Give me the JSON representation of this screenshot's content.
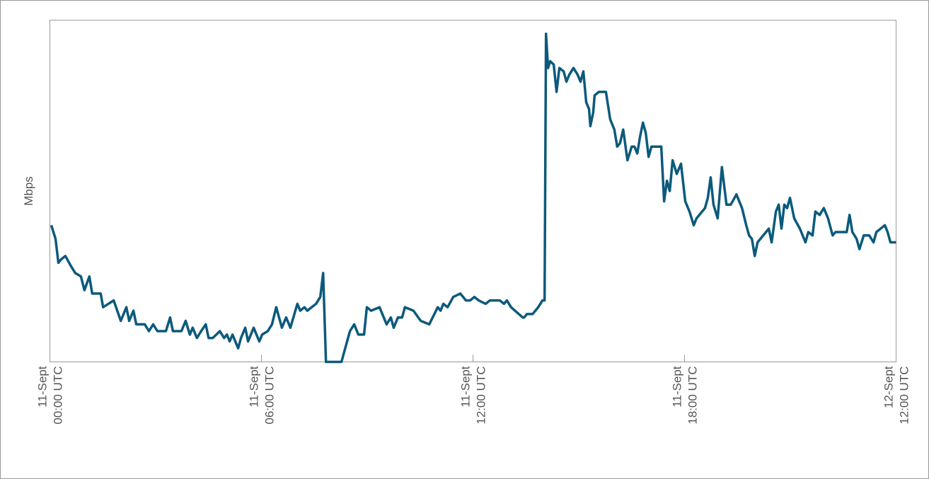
{
  "chart_data": {
    "type": "line",
    "y_label": "Mbps",
    "xlim": [
      0,
      24
    ],
    "ylim": [
      0,
      100
    ],
    "xticks": [
      {
        "value": 0,
        "label": [
          "11-Sept",
          "00:00 UTC"
        ]
      },
      {
        "value": 6,
        "label": [
          "11-Sept",
          "06:00 UTC"
        ]
      },
      {
        "value": 12,
        "label": [
          "11-Sept",
          "12:00 UTC"
        ]
      },
      {
        "value": 18,
        "label": [
          "11-Sept",
          "18:00 UTC"
        ]
      },
      {
        "value": 24,
        "label": [
          "12-Sept",
          "12:00 UTC"
        ]
      }
    ],
    "grid": false,
    "series": [
      {
        "color": "#0b5a7c",
        "x": [
          0.04,
          0.16,
          0.24,
          0.32,
          0.44,
          0.6,
          0.72,
          0.88,
          0.98,
          1.12,
          1.2,
          1.36,
          1.44,
          1.51,
          1.81,
          2.01,
          2.17,
          2.25,
          2.37,
          2.45,
          2.69,
          2.81,
          2.93,
          3.05,
          3.29,
          3.41,
          3.49,
          3.73,
          3.85,
          3.97,
          4.05,
          4.17,
          4.29,
          4.42,
          4.5,
          4.62,
          4.82,
          4.94,
          5.02,
          5.1,
          5.18,
          5.34,
          5.42,
          5.54,
          5.62,
          5.78,
          5.86,
          5.94,
          6.02,
          6.18,
          6.3,
          6.42,
          6.58,
          6.7,
          6.82,
          7.02,
          7.1,
          7.22,
          7.3,
          7.55,
          7.67,
          7.75,
          7.83,
          8.27,
          8.51,
          8.63,
          8.75,
          8.91,
          8.99,
          9.11,
          9.35,
          9.55,
          9.67,
          9.75,
          9.87,
          9.99,
          10.07,
          10.31,
          10.52,
          10.76,
          11.0,
          11.08,
          11.16,
          11.28,
          11.44,
          11.64,
          11.8,
          11.92,
          12.04,
          12.16,
          12.36,
          12.48,
          12.76,
          12.88,
          12.96,
          13.08,
          13.41,
          13.45,
          13.53,
          13.69,
          13.85,
          13.97,
          14.03,
          14.07,
          14.13,
          14.19,
          14.29,
          14.37,
          14.45,
          14.57,
          14.65,
          14.73,
          14.85,
          14.97,
          15.05,
          15.13,
          15.21,
          15.29,
          15.33,
          15.41,
          15.45,
          15.57,
          15.77,
          15.89,
          16.01,
          16.09,
          16.17,
          16.26,
          16.38,
          16.5,
          16.58,
          16.66,
          16.74,
          16.82,
          16.9,
          16.98,
          17.06,
          17.34,
          17.42,
          17.5,
          17.58,
          17.66,
          17.78,
          17.9,
          18.02,
          18.14,
          18.26,
          18.34,
          18.58,
          18.66,
          18.74,
          18.82,
          18.94,
          19.06,
          19.19,
          19.31,
          19.47,
          19.63,
          19.75,
          19.83,
          19.91,
          19.99,
          20.07,
          20.39,
          20.47,
          20.59,
          20.67,
          20.75,
          20.83,
          20.91,
          20.99,
          21.11,
          21.27,
          21.43,
          21.51,
          21.63,
          21.71,
          21.83,
          21.95,
          22.07,
          22.2,
          22.28,
          22.6,
          22.68,
          22.76,
          22.88,
          22.96,
          23.08,
          23.24,
          23.36,
          23.44,
          23.68,
          23.76,
          23.84,
          24.0
        ],
        "values": [
          40,
          36,
          29,
          30,
          31,
          28,
          26,
          25,
          21,
          25,
          20,
          20,
          20,
          16,
          18,
          12,
          16,
          12,
          15,
          11,
          11,
          9,
          11,
          9,
          9,
          13,
          9,
          9,
          12,
          8,
          10,
          7,
          9,
          11,
          7,
          7,
          9,
          7,
          8,
          6,
          8,
          4,
          7,
          10,
          6,
          10,
          8,
          6,
          8,
          9,
          11,
          16,
          10,
          13,
          10,
          17,
          15,
          16,
          15,
          17,
          19,
          26,
          0,
          0,
          9,
          11,
          8,
          8,
          16,
          15,
          16,
          11,
          13,
          10,
          13,
          13,
          16,
          15,
          12,
          11,
          16,
          15,
          17,
          16,
          19,
          20,
          18,
          18,
          19,
          18,
          17,
          18,
          18,
          17,
          18,
          16,
          13,
          13,
          14,
          14,
          16,
          18,
          18,
          96,
          86,
          88,
          87,
          79,
          86,
          85,
          82,
          84,
          86,
          84,
          82,
          85,
          76,
          74,
          69,
          73,
          78,
          79,
          79,
          71,
          68,
          63,
          64,
          68,
          59,
          63,
          63,
          61,
          66,
          70,
          67,
          60,
          63,
          63,
          47,
          53,
          50,
          59,
          55,
          58,
          47,
          44,
          40,
          42,
          45,
          48,
          54,
          46,
          42,
          57,
          46,
          46,
          49,
          45,
          40,
          37,
          36,
          31,
          35,
          39,
          35,
          44,
          46,
          39,
          46,
          45,
          48,
          42,
          39,
          35,
          38,
          37,
          44,
          43,
          45,
          42,
          37,
          38,
          38,
          43,
          38,
          36,
          33,
          37,
          37,
          35,
          38,
          40,
          38,
          35,
          35
        ]
      }
    ]
  }
}
